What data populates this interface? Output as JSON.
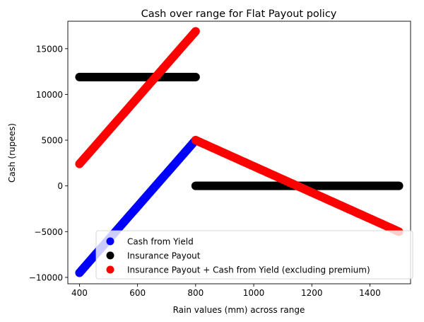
{
  "chart_data": {
    "type": "scatter",
    "title": "Cash over range for Flat Payout policy",
    "xlabel": "Rain values (mm) across range",
    "ylabel": "Cash (rupees)",
    "xlim": [
      360,
      1540
    ],
    "ylim": [
      -10700,
      18000
    ],
    "xticks": [
      400,
      600,
      800,
      1000,
      1200,
      1400
    ],
    "yticks": [
      -10000,
      -5000,
      0,
      5000,
      10000,
      15000
    ],
    "grid": false,
    "legend_position": "lower-right",
    "series": [
      {
        "name": "Cash from Yield",
        "color": "#0000ff",
        "segments": [
          {
            "x_start": 400,
            "x_end": 800,
            "y_start": -9500,
            "y_end": 5000
          }
        ]
      },
      {
        "name": "Insurance Payout",
        "color": "#000000",
        "segments": [
          {
            "x_start": 400,
            "x_end": 800,
            "y_start": 11900,
            "y_end": 11900
          },
          {
            "x_start": 800,
            "x_end": 1500,
            "y_start": 0,
            "y_end": 0
          }
        ]
      },
      {
        "name": "Insurance Payout + Cash from Yield (excluding premium)",
        "color": "#ff0000",
        "segments": [
          {
            "x_start": 400,
            "x_end": 800,
            "y_start": 2400,
            "y_end": 16900
          },
          {
            "x_start": 800,
            "x_end": 1500,
            "y_start": 5000,
            "y_end": -5000
          }
        ]
      }
    ]
  }
}
